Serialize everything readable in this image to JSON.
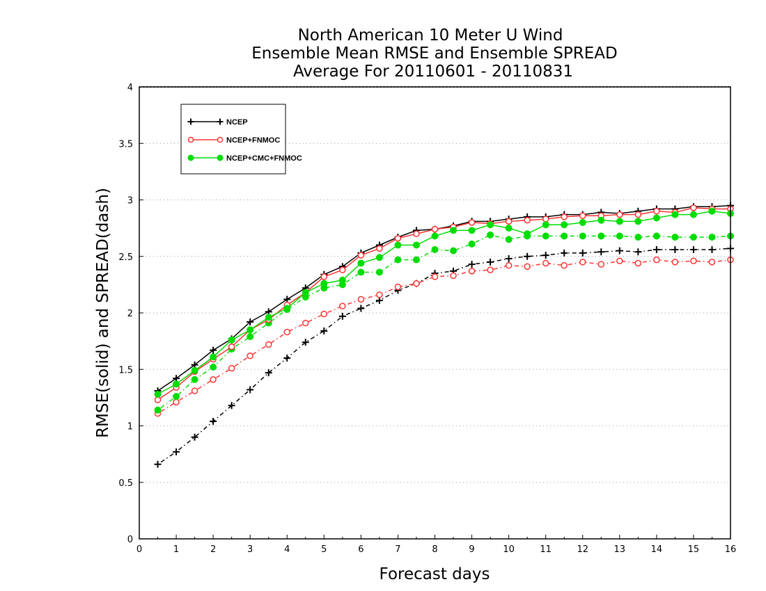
{
  "chart_data": {
    "type": "line",
    "title": [
      "North American 10 Meter U Wind",
      "Ensemble Mean RMSE and Ensemble SPREAD",
      "Average For 20110601 - 20110831"
    ],
    "xlabel": "Forecast days",
    "ylabel": "RMSE(solid) and SPREAD(dash)",
    "xlim": [
      0,
      16
    ],
    "ylim": [
      0,
      4
    ],
    "xticks": [
      0,
      1,
      2,
      3,
      4,
      5,
      6,
      7,
      8,
      9,
      10,
      11,
      12,
      13,
      14,
      15,
      16
    ],
    "yticks": [
      0,
      0.5,
      1,
      1.5,
      2,
      2.5,
      3,
      3.5,
      4
    ],
    "ytick_labels": [
      "0",
      "0.5",
      "1",
      "1.5",
      "2",
      "2.5",
      "3",
      "3.5",
      "4"
    ],
    "grid": "horizontal dotted",
    "legend_position": "top-left",
    "x": [
      0.5,
      1,
      1.5,
      2,
      2.5,
      3,
      3.5,
      4,
      4.5,
      5,
      5.5,
      6,
      6.5,
      7,
      7.5,
      8,
      8.5,
      9,
      9.5,
      10,
      10.5,
      11,
      11.5,
      12,
      12.5,
      13,
      13.5,
      14,
      14.5,
      15,
      15.5,
      16
    ],
    "series": [
      {
        "name": "NCEP",
        "metric": "RMSE",
        "style": "solid",
        "color": "#000000",
        "marker": "plus",
        "values": [
          1.31,
          1.42,
          1.54,
          1.67,
          1.77,
          1.92,
          2.01,
          2.12,
          2.22,
          2.34,
          2.41,
          2.53,
          2.6,
          2.67,
          2.73,
          2.74,
          2.77,
          2.81,
          2.81,
          2.83,
          2.85,
          2.85,
          2.87,
          2.87,
          2.89,
          2.88,
          2.9,
          2.92,
          2.92,
          2.94,
          2.94,
          2.95
        ]
      },
      {
        "name": "NCEP+FNMOC",
        "metric": "RMSE",
        "style": "solid",
        "color": "#ff3333",
        "marker": "open-circle",
        "values": [
          1.23,
          1.34,
          1.48,
          1.59,
          1.7,
          1.85,
          1.94,
          2.07,
          2.18,
          2.32,
          2.38,
          2.51,
          2.57,
          2.66,
          2.7,
          2.74,
          2.76,
          2.8,
          2.79,
          2.81,
          2.82,
          2.83,
          2.85,
          2.86,
          2.86,
          2.87,
          2.87,
          2.9,
          2.89,
          2.93,
          2.92,
          2.92
        ]
      },
      {
        "name": "NCEP+CMC+FNMOC",
        "metric": "RMSE",
        "style": "solid",
        "color": "#00dd00",
        "marker": "filled-circle",
        "values": [
          1.28,
          1.37,
          1.49,
          1.61,
          1.76,
          1.85,
          1.96,
          2.04,
          2.18,
          2.26,
          2.29,
          2.44,
          2.49,
          2.6,
          2.6,
          2.68,
          2.73,
          2.73,
          2.78,
          2.75,
          2.7,
          2.78,
          2.78,
          2.8,
          2.82,
          2.81,
          2.81,
          2.84,
          2.87,
          2.87,
          2.9,
          2.88
        ]
      },
      {
        "name": "NCEP",
        "metric": "SPREAD",
        "style": "dash",
        "color": "#000000",
        "marker": "plus",
        "values": [
          0.66,
          0.77,
          0.9,
          1.04,
          1.18,
          1.32,
          1.47,
          1.6,
          1.74,
          1.84,
          1.97,
          2.04,
          2.11,
          2.2,
          2.26,
          2.35,
          2.37,
          2.43,
          2.45,
          2.48,
          2.5,
          2.51,
          2.53,
          2.53,
          2.54,
          2.55,
          2.54,
          2.56,
          2.56,
          2.56,
          2.56,
          2.57
        ]
      },
      {
        "name": "NCEP+FNMOC",
        "metric": "SPREAD",
        "style": "dash",
        "color": "#ff3333",
        "marker": "open-circle",
        "values": [
          1.11,
          1.21,
          1.31,
          1.41,
          1.51,
          1.62,
          1.72,
          1.83,
          1.91,
          1.99,
          2.06,
          2.12,
          2.16,
          2.23,
          2.26,
          2.32,
          2.33,
          2.37,
          2.38,
          2.42,
          2.41,
          2.44,
          2.42,
          2.45,
          2.43,
          2.46,
          2.44,
          2.47,
          2.45,
          2.46,
          2.45,
          2.47
        ]
      },
      {
        "name": "NCEP+CMC+FNMOC",
        "metric": "SPREAD",
        "style": "dash",
        "color": "#00dd00",
        "marker": "filled-circle",
        "values": [
          1.14,
          1.26,
          1.41,
          1.52,
          1.68,
          1.79,
          1.91,
          2.03,
          2.14,
          2.22,
          2.25,
          2.36,
          2.36,
          2.47,
          2.47,
          2.56,
          2.55,
          2.61,
          2.69,
          2.65,
          2.68,
          2.68,
          2.68,
          2.68,
          2.68,
          2.68,
          2.67,
          2.68,
          2.67,
          2.67,
          2.67,
          2.68
        ]
      }
    ],
    "legend": [
      {
        "label": "NCEP",
        "color": "#000000",
        "marker": "plus"
      },
      {
        "label": "NCEP+FNMOC",
        "color": "#ff3333",
        "marker": "open-circle"
      },
      {
        "label": "NCEP+CMC+FNMOC",
        "color": "#00dd00",
        "marker": "filled-circle"
      }
    ]
  }
}
